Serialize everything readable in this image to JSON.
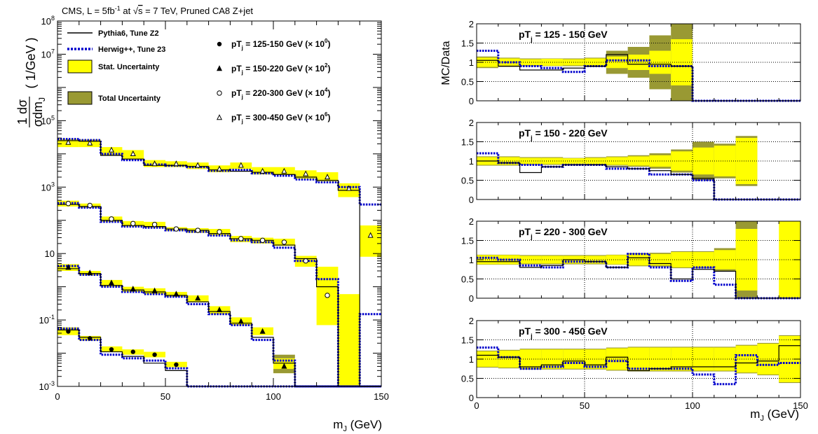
{
  "chart_data": [
    {
      "type": "line",
      "title": "CMS, L = 5fb",
      "title_sup": "-1",
      "title_mid": " at ",
      "title_sqrt": "s",
      "title_end": " = 7 TeV, Pruned CA8 Z+jet",
      "ylabel": "1 dσ / σ dm_J (1/GeV)",
      "xlabel": "m_J (GeV)",
      "xlim": [
        0,
        150
      ],
      "ylim": [
        0.001,
        100000000
      ],
      "y_scale": "log",
      "grid": false,
      "legend_position": "top",
      "x_ticks": [
        "0",
        "50",
        "100",
        "150"
      ],
      "y_ticks": [
        {
          "value": 0.001,
          "base": "10",
          "exp": "-3"
        },
        {
          "value": 0.1,
          "base": "10",
          "exp": "-1"
        },
        {
          "value": 10,
          "base": "10",
          "exp": ""
        },
        {
          "value": 1000,
          "base": "10",
          "exp": "3"
        },
        {
          "value": 100000,
          "base": "10",
          "exp": "5"
        },
        {
          "value": 10000000,
          "base": "10",
          "exp": "7"
        },
        {
          "value": 100000000,
          "base": "10",
          "exp": "8"
        }
      ],
      "legend": {
        "pythia": "Pythia6, Tune Z2",
        "herwig": "Herwig++, Tune 23",
        "stat": "Stat. Uncertainty",
        "total": "Total Uncertainty",
        "bins": [
          {
            "pre": "pT",
            "sub": "j",
            "post": " = 125-150 GeV (× 10",
            "exp": "0",
            "end": ")",
            "marker": "filled-circle"
          },
          {
            "pre": "pT",
            "sub": "j",
            "post": " = 150-220 GeV (× 10",
            "exp": "2",
            "end": ")",
            "marker": "filled-triangle"
          },
          {
            "pre": "pT",
            "sub": "j",
            "post": " = 220-300 GeV (× 10",
            "exp": "4",
            "end": ")",
            "marker": "open-circle"
          },
          {
            "pre": "pT",
            "sub": "j",
            "post": " = 300-450 GeV (× 10",
            "exp": "6",
            "end": ")",
            "marker": "open-triangle"
          }
        ]
      },
      "bin_edges": [
        0,
        10,
        20,
        30,
        40,
        50,
        60,
        70,
        80,
        90,
        100,
        110,
        120,
        130,
        140,
        150
      ],
      "series": [
        {
          "marker": "filled-circle",
          "data": [
            0.045,
            0.028,
            0.013,
            0.011,
            0.009,
            0.0045,
            null,
            null,
            null,
            null,
            null,
            null,
            null,
            null,
            null
          ],
          "stat_low": [
            0.035,
            0.024,
            0.011,
            0.009,
            0.0075,
            0.0038,
            null,
            null,
            null,
            null,
            null,
            null,
            null,
            null,
            null
          ],
          "stat_high": [
            0.06,
            0.033,
            0.016,
            0.013,
            0.011,
            0.0055,
            null,
            null,
            null,
            null,
            null,
            null,
            null,
            null,
            null
          ],
          "pythia": [
            0.05,
            0.03,
            0.011,
            0.008,
            0.005,
            0.003,
            0.001,
            0.001,
            0.001,
            0.001,
            0.001,
            0.001,
            0.001,
            0.001,
            0.001
          ],
          "herwig": [
            0.055,
            0.025,
            0.009,
            0.007,
            0.006,
            0.0035,
            0.001,
            0.001,
            0.001,
            0.001,
            0.001,
            0.001,
            0.001,
            0.001,
            0.001
          ]
        },
        {
          "marker": "filled-triangle",
          "data": [
            3.8,
            2.6,
            1.3,
            0.85,
            0.75,
            0.6,
            0.45,
            0.2,
            0.09,
            0.045,
            0.004,
            null,
            null,
            null,
            null
          ],
          "stat_low": [
            3.0,
            2.2,
            1.0,
            0.7,
            0.6,
            0.5,
            0.35,
            0.15,
            0.07,
            0.035,
            0.0025,
            null,
            null,
            null,
            null
          ],
          "stat_high": [
            4.8,
            3.0,
            1.6,
            1.0,
            0.9,
            0.7,
            0.55,
            0.26,
            0.12,
            0.06,
            0.007,
            null,
            null,
            null,
            null
          ],
          "total_high": [
            null,
            null,
            null,
            null,
            null,
            null,
            null,
            null,
            null,
            null,
            0.009,
            null,
            null,
            null,
            null
          ],
          "pythia": [
            3.5,
            2.5,
            1.1,
            0.8,
            0.7,
            0.55,
            0.35,
            0.18,
            0.08,
            0.03,
            0.005,
            0.001,
            0.001,
            0.001,
            0.001
          ],
          "herwig": [
            4.2,
            2.3,
            1.0,
            0.7,
            0.6,
            0.5,
            0.3,
            0.15,
            0.07,
            0.025,
            0.006,
            0.001,
            0.001,
            0.001,
            0.001
          ]
        },
        {
          "marker": "open-circle",
          "data": [
            320,
            280,
            110,
            80,
            75,
            55,
            50,
            45,
            28,
            25,
            22,
            6,
            0.55,
            null,
            null
          ],
          "stat_low": [
            260,
            240,
            90,
            65,
            60,
            48,
            42,
            35,
            22,
            20,
            17,
            4,
            0.07,
            0.001,
            null
          ],
          "stat_high": [
            390,
            320,
            130,
            95,
            90,
            62,
            58,
            55,
            34,
            30,
            28,
            8.5,
            4,
            0.6,
            null
          ],
          "pythia": [
            300,
            260,
            100,
            70,
            65,
            55,
            50,
            40,
            28,
            25,
            18,
            7,
            1.0,
            0.001,
            0.001
          ],
          "herwig": [
            330,
            240,
            90,
            65,
            60,
            50,
            45,
            35,
            25,
            22,
            15,
            6,
            1.7,
            0.001,
            0.15
          ],
          "pythia_tail": [
            null,
            null,
            null,
            null,
            null,
            null,
            null,
            null,
            null,
            null,
            null,
            null,
            null,
            0.001,
            0.001
          ]
        },
        {
          "marker": "open-triangle",
          "data": [
            22000,
            21000,
            13000,
            10000,
            5000,
            5000,
            4500,
            3500,
            4500,
            3000,
            3000,
            2500,
            2000,
            900,
            35
          ],
          "stat_low": [
            16000,
            16000,
            9000,
            7000,
            4000,
            4000,
            3500,
            2800,
            3500,
            2400,
            2400,
            1800,
            1500,
            500,
            8
          ],
          "stat_high": [
            28000,
            27000,
            16000,
            13000,
            6500,
            6000,
            5500,
            4500,
            5500,
            4000,
            4000,
            3200,
            2800,
            1300,
            70
          ],
          "pythia": [
            25000,
            24000,
            9000,
            7000,
            4500,
            4500,
            4200,
            3300,
            3000,
            2800,
            2400,
            2000,
            1600,
            800,
            0.001
          ],
          "herwig": [
            28000,
            26000,
            10000,
            6500,
            4800,
            4400,
            4000,
            3100,
            3300,
            2600,
            2200,
            1700,
            1400,
            1000,
            300
          ]
        }
      ],
      "colors": {
        "stat": "#ffff00",
        "total": "#999933",
        "pythia": "#000000",
        "herwig": "#0000cc"
      }
    },
    {
      "type": "line",
      "ylabel": "MC/Data",
      "xlabel": "m_J (GeV)",
      "xlim": [
        0,
        150
      ],
      "ylim": [
        0,
        2
      ],
      "grid": true,
      "x_ticks": [
        "0",
        "50",
        "100",
        "150"
      ],
      "y_ticks": [
        "0",
        "0.5",
        "1",
        "1.5",
        "2"
      ],
      "bin_edges": [
        0,
        10,
        20,
        30,
        40,
        50,
        60,
        70,
        80,
        90,
        100,
        110,
        120,
        130,
        140,
        150
      ],
      "panels": [
        {
          "label_pre": "pT",
          "label_sub": "j",
          "label_post": " = 125 - 150 GeV",
          "stat": [
            0.12,
            0.1,
            0.08,
            0.09,
            0.08,
            0.1,
            0.15,
            0.2,
            0.3,
            0.6,
            null,
            null,
            null,
            null,
            null
          ],
          "total": [
            0.15,
            0.12,
            0.1,
            0.1,
            0.1,
            0.12,
            0.3,
            0.4,
            0.7,
            1.0,
            null,
            null,
            null,
            null,
            null
          ],
          "pythia": [
            1.05,
            0.9,
            0.8,
            0.8,
            0.85,
            0.9,
            1.2,
            0.95,
            0.95,
            0.9,
            0,
            0,
            0,
            0,
            0
          ],
          "herwig": [
            1.3,
            1.0,
            0.9,
            0.85,
            0.75,
            0.9,
            1.05,
            1.05,
            0.9,
            0.9,
            0,
            0,
            0,
            0,
            0
          ]
        },
        {
          "label_pre": "pT",
          "label_sub": "j",
          "label_post": " = 150 - 220 GeV",
          "stat": [
            0.1,
            0.1,
            0.08,
            0.08,
            0.07,
            0.08,
            0.1,
            0.12,
            0.15,
            0.25,
            0.35,
            0.4,
            0.6,
            null,
            null
          ],
          "total": [
            0.12,
            0.12,
            0.1,
            0.1,
            0.08,
            0.1,
            0.12,
            0.15,
            0.2,
            0.3,
            0.5,
            0.45,
            0.65,
            null,
            null
          ],
          "pythia": [
            1.0,
            0.95,
            0.7,
            0.85,
            0.9,
            0.9,
            0.85,
            0.8,
            0.75,
            0.65,
            0.55,
            0,
            0,
            0,
            0
          ],
          "herwig": [
            1.2,
            0.95,
            0.9,
            0.85,
            0.9,
            0.9,
            0.8,
            0.8,
            0.65,
            0.65,
            0.5,
            0,
            0,
            0,
            0
          ]
        },
        {
          "label_pre": "pT",
          "label_sub": "j",
          "label_post": " = 220 - 300 GeV",
          "stat": [
            0.12,
            0.12,
            0.1,
            0.1,
            0.1,
            0.1,
            0.12,
            0.15,
            0.15,
            0.2,
            0.2,
            0.25,
            0.8,
            null,
            1.0
          ],
          "total": [
            0.13,
            0.13,
            0.12,
            0.12,
            0.12,
            0.12,
            0.13,
            0.17,
            0.18,
            0.22,
            0.22,
            0.3,
            1.0,
            null,
            null
          ],
          "pythia": [
            0.95,
            0.95,
            0.8,
            0.85,
            1.0,
            0.95,
            0.8,
            1.05,
            0.9,
            0.5,
            0.75,
            0.7,
            0,
            0,
            0
          ],
          "herwig": [
            1.05,
            1.0,
            0.85,
            0.8,
            0.95,
            0.95,
            0.8,
            1.15,
            0.8,
            0.45,
            0.8,
            0.35,
            0,
            0,
            0
          ]
        },
        {
          "label_pre": "pT",
          "label_sub": "j",
          "label_post": " = 300 - 450 GeV",
          "stat": [
            0.2,
            0.22,
            0.25,
            0.25,
            0.25,
            0.25,
            0.28,
            0.3,
            0.3,
            0.3,
            0.3,
            0.3,
            0.35,
            0.4,
            0.6
          ],
          "total": [
            0.22,
            0.24,
            0.27,
            0.27,
            0.27,
            0.27,
            0.3,
            0.32,
            0.32,
            0.32,
            0.32,
            0.32,
            0.37,
            0.42,
            0.62
          ],
          "pythia": [
            1.1,
            1.05,
            0.8,
            0.85,
            0.95,
            0.85,
            1.05,
            0.7,
            0.75,
            0.8,
            0.8,
            0.8,
            0.9,
            0.95,
            1.35
          ],
          "herwig": [
            1.3,
            1.05,
            0.75,
            0.8,
            0.9,
            0.8,
            0.95,
            0.75,
            0.75,
            0.75,
            0.6,
            0.35,
            1.1,
            0.85,
            0.9
          ]
        }
      ]
    }
  ]
}
